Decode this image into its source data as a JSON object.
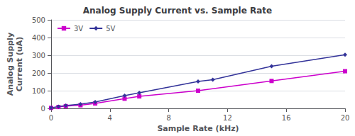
{
  "chart_data": {
    "type": "line",
    "title": "Analog Supply Current vs. Sample Rate",
    "xlabel": "Sample Rate (kHz)",
    "ylabel": "Analog Supply\nCurrent (uA)",
    "xlim": [
      0,
      20
    ],
    "ylim": [
      0,
      500
    ],
    "xticks": [
      0,
      4,
      8,
      12,
      16,
      20
    ],
    "yticks": [
      0,
      100,
      200,
      300,
      400,
      500
    ],
    "grid": true,
    "legend": "upper left",
    "series": [
      {
        "name": "3V",
        "color": "#cc00cc",
        "marker": "square",
        "x": [
          0,
          0.5,
          1,
          2,
          3,
          5,
          6,
          10,
          15,
          20
        ],
        "values": [
          3,
          8,
          13,
          18,
          28,
          55,
          68,
          100,
          155,
          210
        ]
      },
      {
        "name": "5V",
        "color": "#333399",
        "marker": "diamond",
        "x": [
          0,
          0.5,
          1,
          2,
          3,
          5,
          6,
          10,
          11,
          15,
          20
        ],
        "values": [
          3,
          10,
          16,
          24,
          36,
          72,
          88,
          152,
          162,
          238,
          303
        ]
      }
    ]
  }
}
